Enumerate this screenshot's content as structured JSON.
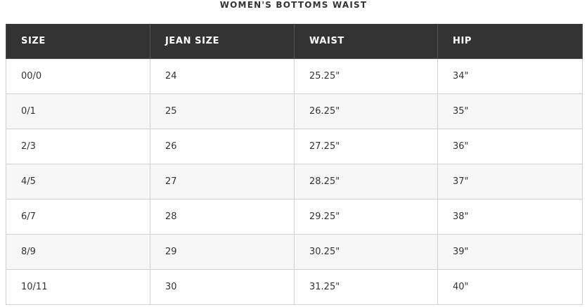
{
  "title": "WOMEN'S BOTTOMS WAIST",
  "table": {
    "headers": [
      "SIZE",
      "JEAN SIZE",
      "WAIST",
      "HIP"
    ],
    "rows": [
      [
        "00/0",
        "24",
        "25.25\"",
        "34\""
      ],
      [
        "0/1",
        "25",
        "26.25\"",
        "35\""
      ],
      [
        "2/3",
        "26",
        "27.25\"",
        "36\""
      ],
      [
        "4/5",
        "27",
        "28.25\"",
        "37\""
      ],
      [
        "6/7",
        "28",
        "29.25\"",
        "38\""
      ],
      [
        "8/9",
        "29",
        "30.25\"",
        "39\""
      ],
      [
        "10/11",
        "30",
        "31.25\"",
        "40\""
      ]
    ]
  }
}
